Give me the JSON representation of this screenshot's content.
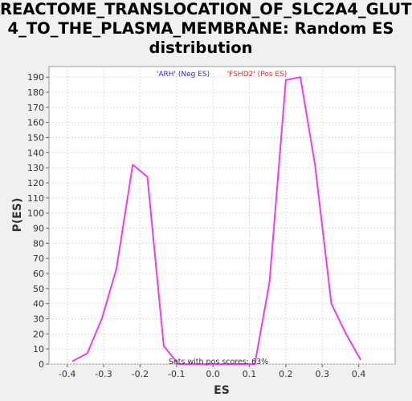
{
  "chart_data": {
    "type": "line",
    "title_lines": [
      "REACTOME_TRANSLOCATION_OF_SLC2A4_GLUT",
      "4_TO_THE_PLASMA_MEMBRANE: Random ES",
      "distribution"
    ],
    "xlabel": "ES",
    "ylabel": "P(ES)",
    "xlim": [
      -0.45,
      0.5
    ],
    "ylim": [
      0,
      197
    ],
    "xticks": [
      -0.4,
      -0.3,
      -0.2,
      -0.1,
      0.0,
      0.1,
      0.2,
      0.3,
      0.4
    ],
    "xtick_labels": [
      "-0.4",
      "-0.3",
      "-0.2",
      "-0.1",
      "0.0",
      "0.1",
      "0.2",
      "0.3",
      "0.4"
    ],
    "yticks": [
      0,
      10,
      20,
      30,
      40,
      50,
      60,
      70,
      80,
      90,
      100,
      110,
      120,
      130,
      140,
      150,
      160,
      170,
      180,
      190
    ],
    "grid": true,
    "series": [
      {
        "color": "#ee3cee",
        "x": [
          -0.385,
          -0.345,
          -0.305,
          -0.265,
          -0.22,
          -0.18,
          -0.135,
          -0.095,
          0.115,
          0.155,
          0.2,
          0.24,
          0.28,
          0.325,
          0.365,
          0.405
        ],
        "y": [
          2,
          7,
          30,
          63,
          132,
          124,
          12,
          0,
          0,
          54,
          188,
          190,
          132,
          40,
          20,
          3
        ]
      }
    ],
    "legend": [
      {
        "label": "'ARH' (Neg ES)",
        "color": "#2a2ae0"
      },
      {
        "label": "'FSHD2' (Pos ES)",
        "color": "#e02a2a"
      }
    ],
    "legend_position": "top-center",
    "annotation": "Sets with pos scores: 63%"
  }
}
